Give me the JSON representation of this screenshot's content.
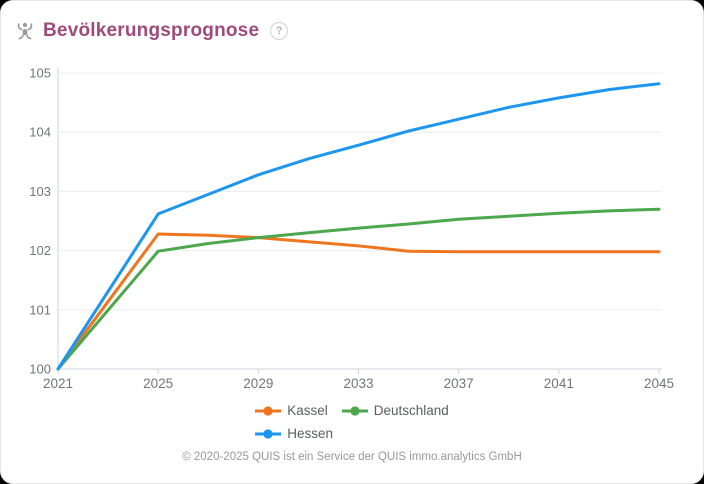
{
  "header": {
    "title": "Bevölkerungsprognose",
    "help_glyph": "?"
  },
  "colors": {
    "title": "#9e4a7d",
    "header_icon": "#9b9b9b",
    "axis_line": "#ccd6dd",
    "grid_line": "#e9edf1",
    "tick_label": "#72757a",
    "legend_text": "#5b5e62",
    "footer_text": "#96989b",
    "card_background": "#ffffff"
  },
  "chart_data": {
    "type": "line",
    "title": "Bevölkerungsprognose",
    "x": [
      2021,
      2025,
      2027,
      2029,
      2031,
      2033,
      2035,
      2037,
      2039,
      2041,
      2043,
      2045
    ],
    "series": [
      {
        "name": "Kassel",
        "color": "#f0751f",
        "values": [
          100,
          102.28,
          102.26,
          102.22,
          102.15,
          102.08,
          101.99,
          101.98,
          101.98,
          101.98,
          101.98,
          101.98
        ]
      },
      {
        "name": "Deutschland",
        "color": "#4da74d",
        "values": [
          100,
          101.99,
          102.12,
          102.22,
          102.3,
          102.38,
          102.45,
          102.53,
          102.58,
          102.63,
          102.67,
          102.7
        ]
      },
      {
        "name": "Hessen",
        "color": "#1d96f0",
        "values": [
          100,
          102.62,
          102.95,
          103.28,
          103.55,
          103.78,
          104.02,
          104.22,
          104.42,
          104.58,
          104.72,
          104.82
        ]
      }
    ],
    "xlabel": "",
    "ylabel": "",
    "xlim": [
      2021,
      2045
    ],
    "ylim": [
      100,
      105
    ],
    "x_ticks": [
      2021,
      2025,
      2029,
      2033,
      2037,
      2041,
      2045
    ],
    "y_ticks": [
      100,
      101,
      102,
      103,
      104,
      105
    ],
    "grid": true,
    "legend_position": "bottom"
  },
  "legend": {
    "rows": [
      [
        "Kassel",
        "Deutschland"
      ],
      [
        "Hessen"
      ]
    ]
  },
  "footer": {
    "copyright": "© 2020-2025 QUIS ist ein Service der QUIS immo.analytics GmbH"
  }
}
